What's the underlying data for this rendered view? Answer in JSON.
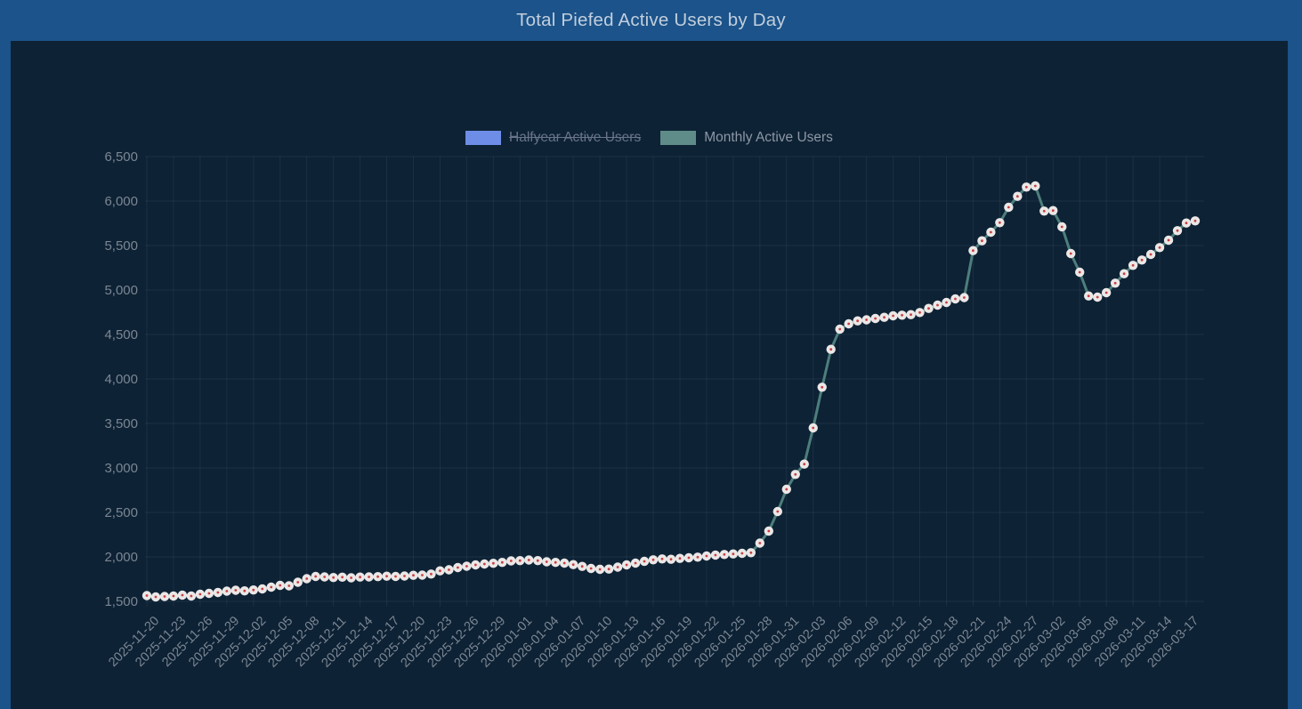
{
  "window": {
    "title": "Total Piefed Active Users by Day"
  },
  "colors": {
    "frame_blue": "#1b538a",
    "panel_background": "#0d2234",
    "title_text": "#c2cedc",
    "axis_text": "#7b8694",
    "gridline": "rgba(160,180,205,0.10)",
    "line": "#4d7e7c",
    "point_fill": "#ebe7e7",
    "point_center": "#c84040",
    "halfyear_swatch": "#6d8de6",
    "monthly_swatch": "#5f8c88"
  },
  "legend": {
    "items": [
      {
        "id": "halfyear",
        "label": "Halfyear Active Users",
        "color": "#6d8de6",
        "disabled": true
      },
      {
        "id": "monthly",
        "label": "Monthly Active Users",
        "color": "#5f8c88",
        "disabled": false
      }
    ]
  },
  "chart_data": {
    "type": "line",
    "title": "Total Piefed Active Users by Day",
    "xlabel": "",
    "ylabel": "",
    "ylim": [
      1500,
      6500
    ],
    "ytick_step": 500,
    "grid": true,
    "legend_position": "top",
    "x_tick_every": 3,
    "x": [
      "2025-11-20",
      "2025-11-21",
      "2025-11-22",
      "2025-11-23",
      "2025-11-24",
      "2025-11-25",
      "2025-11-26",
      "2025-11-27",
      "2025-11-28",
      "2025-11-29",
      "2025-11-30",
      "2025-12-01",
      "2025-12-02",
      "2025-12-03",
      "2025-12-04",
      "2025-12-05",
      "2025-12-06",
      "2025-12-07",
      "2025-12-08",
      "2025-12-09",
      "2025-12-10",
      "2025-12-11",
      "2025-12-12",
      "2025-12-13",
      "2025-12-14",
      "2025-12-15",
      "2025-12-16",
      "2025-12-17",
      "2025-12-18",
      "2025-12-19",
      "2025-12-20",
      "2025-12-21",
      "2025-12-22",
      "2025-12-23",
      "2025-12-24",
      "2025-12-25",
      "2025-12-26",
      "2025-12-27",
      "2025-12-28",
      "2025-12-29",
      "2025-12-30",
      "2025-12-31",
      "2026-01-01",
      "2026-01-02",
      "2026-01-03",
      "2026-01-04",
      "2026-01-05",
      "2026-01-06",
      "2026-01-07",
      "2026-01-08",
      "2026-01-09",
      "2026-01-10",
      "2026-01-11",
      "2026-01-12",
      "2026-01-13",
      "2026-01-14",
      "2026-01-15",
      "2026-01-16",
      "2026-01-17",
      "2026-01-18",
      "2026-01-19",
      "2026-01-20",
      "2026-01-21",
      "2026-01-22",
      "2026-01-23",
      "2026-01-24",
      "2026-01-25",
      "2026-01-26",
      "2026-01-27",
      "2026-01-28",
      "2026-01-29",
      "2026-01-30",
      "2026-01-31",
      "2026-02-01",
      "2026-02-02",
      "2026-02-03",
      "2026-02-04",
      "2026-02-05",
      "2026-02-06",
      "2026-02-07",
      "2026-02-08",
      "2026-02-09",
      "2026-02-10",
      "2026-02-11",
      "2026-02-12",
      "2026-02-13",
      "2026-02-14",
      "2026-02-15",
      "2026-02-16",
      "2026-02-17",
      "2026-02-18",
      "2026-02-19",
      "2026-02-20",
      "2026-02-21",
      "2026-02-22",
      "2026-02-23",
      "2026-02-24",
      "2026-02-25",
      "2026-02-26",
      "2026-02-27",
      "2026-02-28",
      "2026-03-01",
      "2026-03-02",
      "2026-03-03",
      "2026-03-04",
      "2026-03-05",
      "2026-03-06",
      "2026-03-07",
      "2026-03-08",
      "2026-03-09",
      "2026-03-10",
      "2026-03-11",
      "2026-03-12",
      "2026-03-13",
      "2026-03-14",
      "2026-03-15",
      "2026-03-16",
      "2026-03-17",
      "2026-03-18"
    ],
    "series": [
      {
        "name": "Monthly Active Users",
        "color": "#4d7e7c",
        "values": [
          1565,
          1550,
          1555,
          1560,
          1570,
          1560,
          1580,
          1590,
          1600,
          1615,
          1625,
          1618,
          1628,
          1640,
          1660,
          1680,
          1675,
          1715,
          1755,
          1780,
          1775,
          1768,
          1772,
          1765,
          1773,
          1775,
          1778,
          1783,
          1780,
          1785,
          1793,
          1795,
          1807,
          1843,
          1855,
          1880,
          1895,
          1910,
          1920,
          1928,
          1938,
          1955,
          1958,
          1965,
          1958,
          1945,
          1938,
          1930,
          1913,
          1893,
          1870,
          1860,
          1863,
          1885,
          1910,
          1930,
          1950,
          1967,
          1977,
          1973,
          1983,
          1990,
          1997,
          2010,
          2020,
          2027,
          2033,
          2040,
          2047,
          2155,
          2290,
          2510,
          2760,
          2927,
          3043,
          3450,
          3907,
          4333,
          4560,
          4620,
          4653,
          4665,
          4680,
          4693,
          4710,
          4717,
          4723,
          4747,
          4793,
          4830,
          4860,
          4900,
          4915,
          5443,
          5553,
          5650,
          5757,
          5930,
          6053,
          6157,
          6170,
          5887,
          5893,
          5710,
          5410,
          5200,
          4933,
          4920,
          4970,
          5077,
          5183,
          5277,
          5337,
          5400,
          5477,
          5560,
          5667,
          5753,
          5777
        ]
      }
    ]
  }
}
